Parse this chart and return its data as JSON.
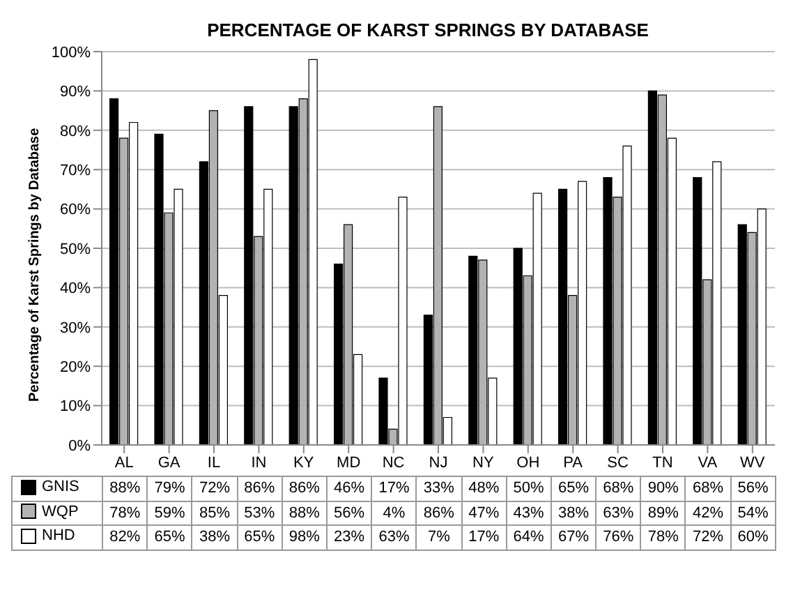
{
  "chart_data": {
    "type": "bar",
    "title": "PERCENTAGE OF KARST SPRINGS BY DATABASE",
    "ylabel": "Percentage of Karst Springs by Database",
    "categories": [
      "AL",
      "GA",
      "IL",
      "IN",
      "KY",
      "MD",
      "NC",
      "NJ",
      "NY",
      "OH",
      "PA",
      "SC",
      "TN",
      "VA",
      "WV"
    ],
    "series": [
      {
        "name": "GNIS",
        "color": "#000000",
        "values": [
          88,
          79,
          72,
          86,
          86,
          46,
          17,
          33,
          48,
          50,
          65,
          68,
          90,
          68,
          56
        ],
        "value_labels": [
          "88%",
          "79%",
          "72%",
          "86%",
          "86%",
          "46%",
          "17%",
          "33%",
          "48%",
          "50%",
          "65%",
          "68%",
          "90%",
          "68%",
          "56%"
        ]
      },
      {
        "name": "WQP",
        "color": "#b3b3b3",
        "values": [
          78,
          59,
          85,
          53,
          88,
          56,
          4,
          86,
          47,
          43,
          38,
          63,
          89,
          42,
          54
        ],
        "value_labels": [
          "78%",
          "59%",
          "85%",
          "53%",
          "88%",
          "56%",
          "4%",
          "86%",
          "47%",
          "43%",
          "38%",
          "63%",
          "89%",
          "42%",
          "54%"
        ]
      },
      {
        "name": "NHD",
        "color": "#ffffff",
        "values": [
          82,
          65,
          38,
          65,
          98,
          23,
          63,
          7,
          17,
          64,
          67,
          76,
          78,
          72,
          60
        ],
        "value_labels": [
          "82%",
          "65%",
          "38%",
          "65%",
          "98%",
          "23%",
          "63%",
          "7%",
          "17%",
          "64%",
          "67%",
          "76%",
          "78%",
          "72%",
          "60%"
        ]
      }
    ],
    "ylim": [
      0,
      100
    ],
    "yticks": [
      {
        "value": 0,
        "label": "0%"
      },
      {
        "value": 10,
        "label": "10%"
      },
      {
        "value": 20,
        "label": "20%"
      },
      {
        "value": 30,
        "label": "30%"
      },
      {
        "value": 40,
        "label": "40%"
      },
      {
        "value": 50,
        "label": "50%"
      },
      {
        "value": 60,
        "label": "60%"
      },
      {
        "value": 70,
        "label": "70%"
      },
      {
        "value": 80,
        "label": "80%"
      },
      {
        "value": 90,
        "label": "90%"
      },
      {
        "value": 100,
        "label": "100%"
      }
    ],
    "grid": "y",
    "legend": "bottom"
  }
}
